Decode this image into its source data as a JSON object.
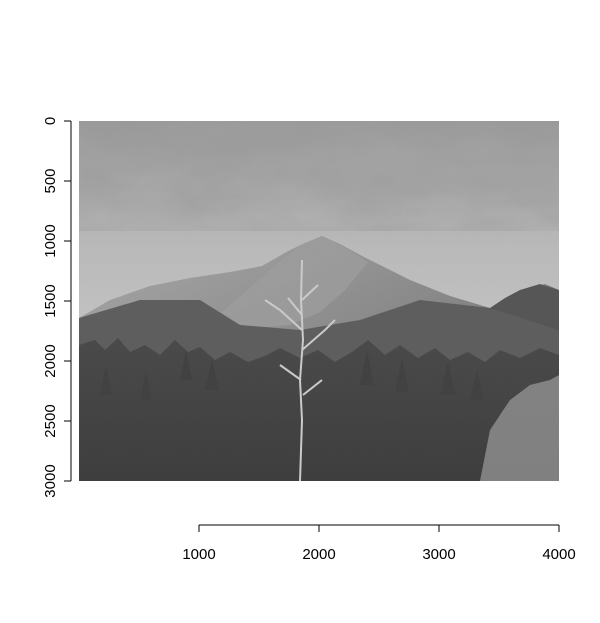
{
  "chart_data": {
    "type": "image",
    "xlim": [
      0,
      4000
    ],
    "ylim": [
      3000,
      0
    ],
    "x_ticks": [
      1000,
      2000,
      3000,
      4000
    ],
    "y_ticks": [
      0,
      500,
      1000,
      1500,
      2000,
      2500,
      3000
    ],
    "x_tick_labels": [
      "1000",
      "2000",
      "3000",
      "4000"
    ],
    "y_tick_labels": [
      "0",
      "500",
      "1000",
      "1500",
      "2000",
      "2500",
      "3000"
    ],
    "y_axis_inverted": true,
    "grid": false,
    "image": {
      "colormap": "grayscale",
      "subject": "mountain-peak-forest-landscape"
    }
  }
}
